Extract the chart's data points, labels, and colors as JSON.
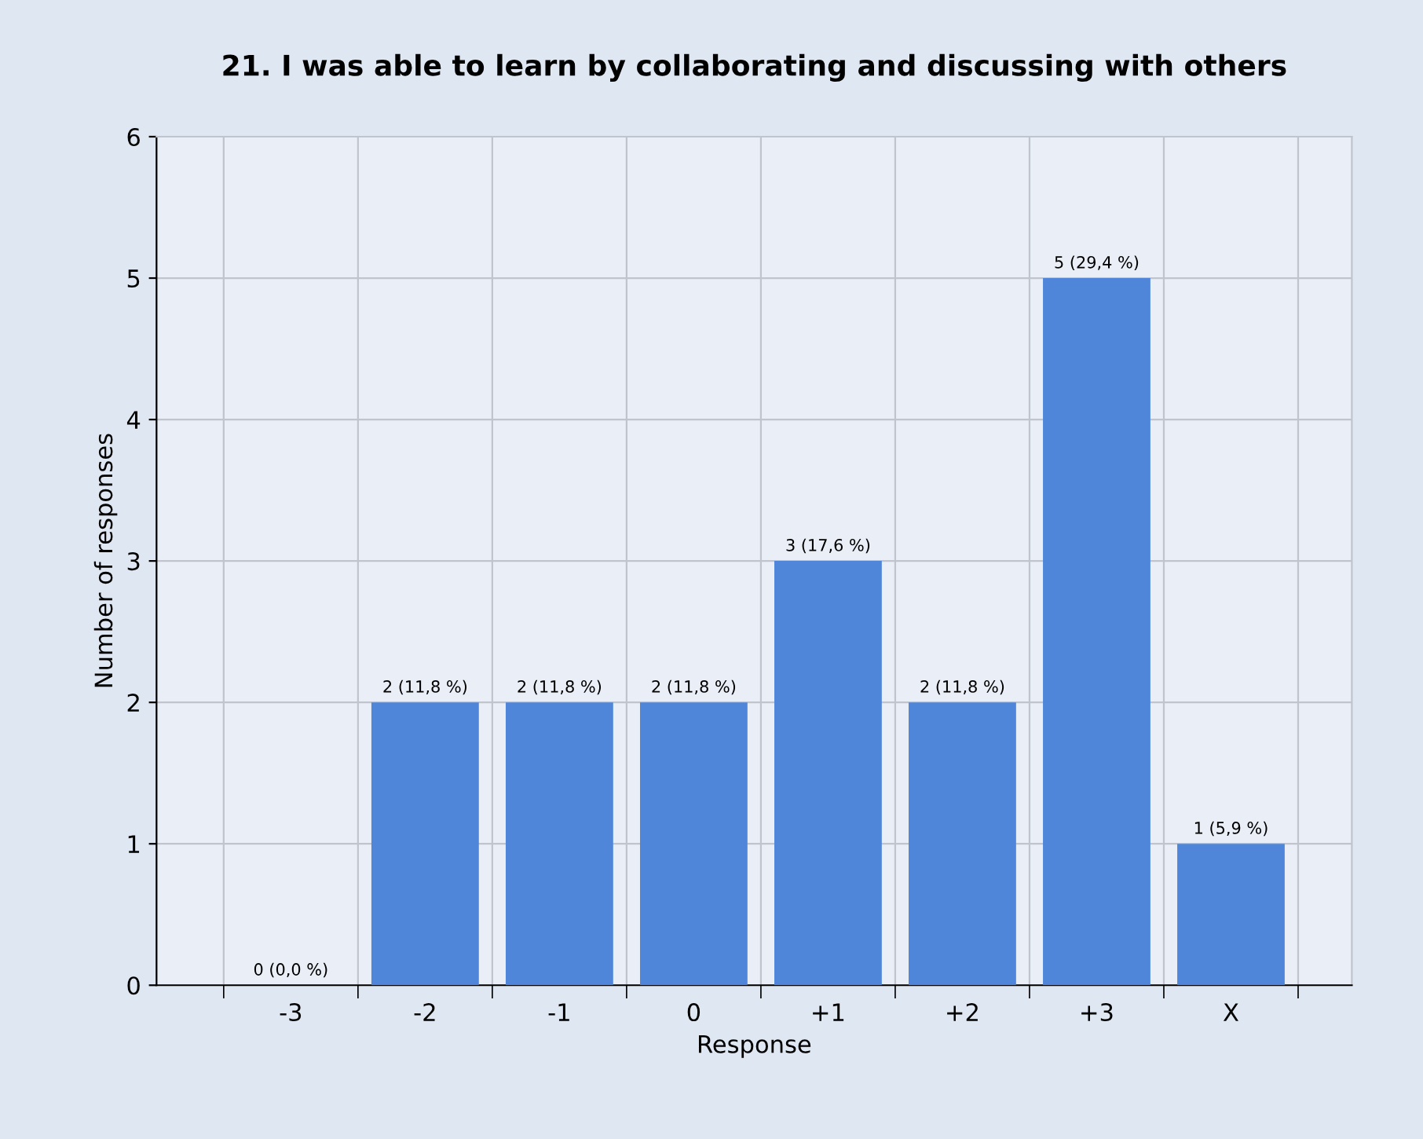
{
  "chart_data": {
    "type": "bar",
    "title": "21. I was able to learn by collaborating and discussing with others",
    "xlabel": "Response",
    "ylabel": "Number of responses",
    "categories": [
      "-3",
      "-2",
      "-1",
      "0",
      "+1",
      "+2",
      "+3",
      "X"
    ],
    "values": [
      0,
      2,
      2,
      2,
      3,
      2,
      5,
      1
    ],
    "value_labels": [
      "0 (0,0 %)",
      "2 (11,8 %)",
      "2 (11,8 %)",
      "2 (11,8 %)",
      "3 (17,6 %)",
      "2 (11,8 %)",
      "5 (29,4 %)",
      "1 (5,9 %)"
    ],
    "color": "#4f86d9",
    "ylim": [
      0,
      6
    ],
    "yticks": [
      0,
      1,
      2,
      3,
      4,
      5,
      6
    ],
    "grid": true
  }
}
